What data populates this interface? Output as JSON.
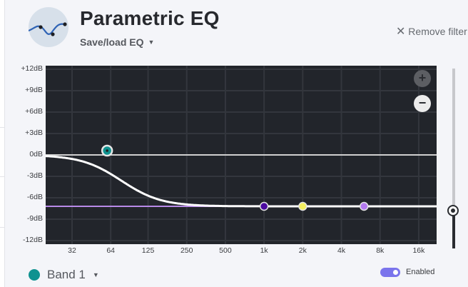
{
  "header": {
    "title": "Parametric EQ",
    "save_load": "Save/load EQ",
    "remove_filter": "Remove filter"
  },
  "logo_icon": "eq-curve-icon",
  "chart": {
    "y_labels": [
      "+12dB",
      "+9dB",
      "+6dB",
      "+3dB",
      "0dB",
      "-3dB",
      "-6dB",
      "-9dB",
      "-12dB"
    ],
    "x_labels": [
      "32",
      "64",
      "125",
      "250",
      "500",
      "1k",
      "2k",
      "4k",
      "8k",
      "16k"
    ],
    "zoom_in": "+",
    "zoom_out": "−",
    "colors": {
      "background": "#22252b",
      "grid": "#33363d",
      "zero_line": "#d0d0d0",
      "curve": "#ffffff",
      "band1": "#0f9290",
      "band2": "#4b0aa0",
      "band3": "#f5f060",
      "band4": "#b47af0",
      "band_line": "#b88ae8"
    },
    "bands": [
      {
        "freq_hz": 60,
        "gain_db": 0.6,
        "color": "#0f9290",
        "selected": true
      },
      {
        "freq_hz": 1000,
        "gain_db": -7.2,
        "color": "#4b0aa0"
      },
      {
        "freq_hz": 2000,
        "gain_db": -7.2,
        "color": "#f5f060"
      },
      {
        "freq_hz": 6000,
        "gain_db": -7.2,
        "color": "#b47af0"
      }
    ],
    "preamp_gain_db": -7.2
  },
  "footer": {
    "band_label": "Band 1",
    "enabled_label": "Enabled",
    "enabled": true
  },
  "volume_slider_fraction": 0.21
}
